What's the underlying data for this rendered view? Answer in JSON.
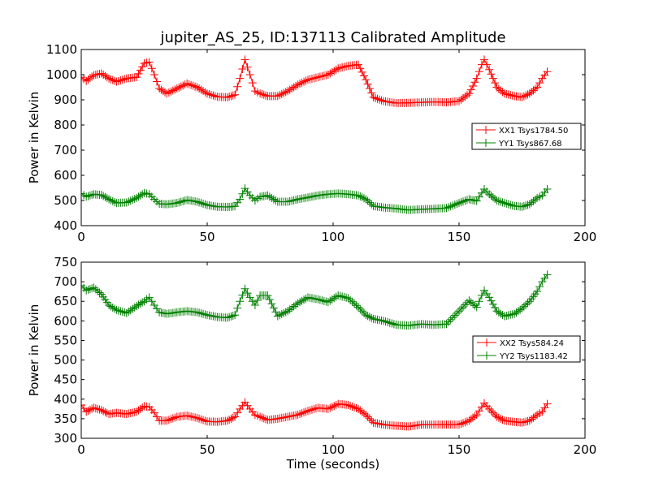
{
  "title": "jupiter_AS_25, ID:137113 Calibrated Amplitude",
  "chart_data": [
    {
      "type": "line",
      "ylabel": "Power in Kelvin",
      "xlabel": "",
      "xlim": [
        0,
        200
      ],
      "ylim": [
        400,
        1100
      ],
      "xticks": [
        "0",
        "50",
        "100",
        "150",
        "200"
      ],
      "yticks": [
        "400",
        "500",
        "600",
        "700",
        "800",
        "900",
        "1000",
        "1100"
      ],
      "legend_position": "right",
      "series": [
        {
          "name": "XX1 Tsys1784.50",
          "color": "#ff0000",
          "x": [
            0,
            2,
            5,
            8,
            11,
            14,
            18,
            22,
            25,
            27,
            29,
            31,
            34,
            38,
            42,
            46,
            50,
            54,
            58,
            61,
            63,
            65,
            67,
            69,
            71,
            74,
            78,
            82,
            86,
            90,
            94,
            98,
            102,
            106,
            110,
            113,
            116,
            120,
            125,
            130,
            135,
            140,
            145,
            150,
            154,
            157,
            159,
            160,
            162,
            165,
            168,
            172,
            175,
            178,
            181,
            183,
            185
          ],
          "y": [
            990,
            975,
            998,
            1005,
            985,
            972,
            985,
            990,
            1045,
            1050,
            1000,
            945,
            925,
            945,
            965,
            950,
            925,
            912,
            910,
            920,
            985,
            1060,
            1000,
            935,
            925,
            915,
            915,
            935,
            960,
            980,
            990,
            1000,
            1025,
            1035,
            1040,
            980,
            910,
            895,
            887,
            888,
            890,
            892,
            890,
            895,
            925,
            985,
            1040,
            1060,
            1020,
            950,
            925,
            915,
            910,
            925,
            950,
            985,
            1012
          ]
        },
        {
          "name": "YY1 Tsys867.68",
          "color": "#008000",
          "x": [
            0,
            2,
            5,
            8,
            11,
            14,
            18,
            22,
            25,
            27,
            29,
            31,
            34,
            38,
            42,
            46,
            50,
            54,
            58,
            61,
            63,
            65,
            67,
            69,
            71,
            74,
            78,
            82,
            86,
            90,
            94,
            98,
            102,
            106,
            110,
            113,
            116,
            120,
            125,
            130,
            135,
            140,
            145,
            150,
            154,
            157,
            159,
            160,
            162,
            165,
            168,
            172,
            175,
            178,
            181,
            183,
            185
          ],
          "y": [
            528,
            515,
            525,
            522,
            505,
            490,
            492,
            510,
            530,
            525,
            505,
            487,
            485,
            490,
            502,
            495,
            482,
            475,
            474,
            477,
            505,
            548,
            520,
            500,
            515,
            520,
            495,
            495,
            505,
            512,
            520,
            525,
            528,
            525,
            520,
            505,
            478,
            472,
            468,
            462,
            465,
            467,
            470,
            490,
            505,
            498,
            530,
            545,
            525,
            500,
            490,
            478,
            475,
            485,
            510,
            520,
            545
          ]
        }
      ]
    },
    {
      "type": "line",
      "ylabel": "Power in Kelvin",
      "xlabel": "Time (seconds)",
      "xlim": [
        0,
        200
      ],
      "ylim": [
        300,
        750
      ],
      "xticks": [
        "0",
        "50",
        "100",
        "150",
        "200"
      ],
      "yticks": [
        "300",
        "350",
        "400",
        "450",
        "500",
        "550",
        "600",
        "650",
        "700",
        "750"
      ],
      "legend_position": "right",
      "series": [
        {
          "name": "XX2 Tsys584.24",
          "color": "#ff0000",
          "x": [
            0,
            2,
            5,
            8,
            11,
            14,
            18,
            22,
            25,
            27,
            29,
            31,
            34,
            38,
            42,
            46,
            50,
            54,
            58,
            61,
            63,
            65,
            67,
            69,
            71,
            74,
            78,
            82,
            86,
            90,
            94,
            98,
            102,
            106,
            110,
            113,
            116,
            120,
            125,
            130,
            135,
            140,
            145,
            150,
            154,
            157,
            159,
            160,
            162,
            165,
            168,
            172,
            175,
            178,
            181,
            183,
            185
          ],
          "y": [
            385,
            368,
            378,
            372,
            362,
            365,
            362,
            368,
            382,
            380,
            365,
            345,
            345,
            355,
            358,
            352,
            343,
            342,
            345,
            355,
            375,
            392,
            375,
            360,
            355,
            347,
            350,
            355,
            360,
            370,
            378,
            375,
            388,
            385,
            375,
            360,
            340,
            335,
            332,
            330,
            335,
            335,
            335,
            335,
            345,
            360,
            380,
            390,
            375,
            355,
            345,
            342,
            340,
            345,
            360,
            368,
            388
          ]
        },
        {
          "name": "YY2 Tsys1183.42",
          "color": "#008000",
          "x": [
            0,
            2,
            5,
            8,
            11,
            14,
            18,
            22,
            25,
            27,
            29,
            31,
            34,
            38,
            42,
            46,
            50,
            54,
            58,
            61,
            63,
            65,
            67,
            69,
            71,
            74,
            78,
            82,
            86,
            90,
            94,
            98,
            102,
            106,
            110,
            113,
            116,
            120,
            125,
            130,
            135,
            140,
            145,
            150,
            154,
            157,
            159,
            160,
            162,
            165,
            168,
            172,
            175,
            178,
            181,
            183,
            185
          ],
          "y": [
            690,
            678,
            685,
            668,
            640,
            628,
            620,
            638,
            650,
            660,
            640,
            622,
            618,
            622,
            625,
            622,
            615,
            610,
            608,
            615,
            650,
            682,
            660,
            640,
            665,
            665,
            612,
            625,
            645,
            660,
            655,
            648,
            665,
            658,
            635,
            615,
            605,
            600,
            590,
            588,
            592,
            590,
            592,
            625,
            652,
            635,
            665,
            678,
            660,
            625,
            612,
            618,
            632,
            650,
            675,
            700,
            718
          ]
        }
      ]
    }
  ]
}
